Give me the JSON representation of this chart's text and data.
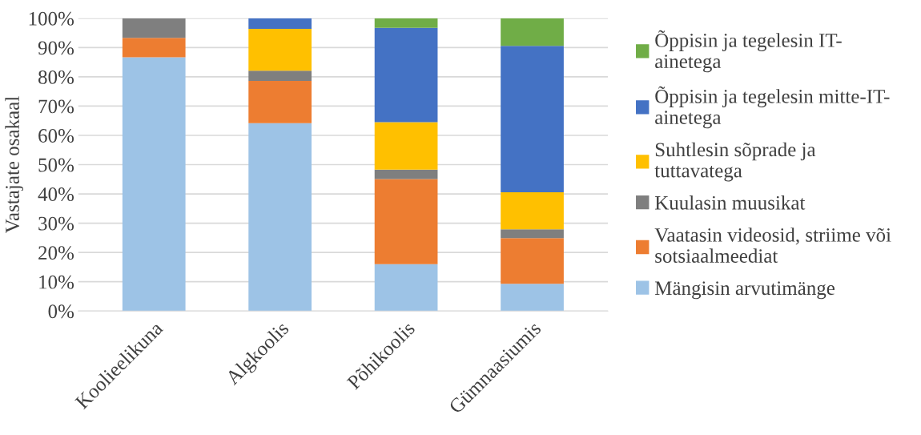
{
  "chart_data": {
    "type": "bar",
    "stacked": true,
    "ylabel": "Vastajate osakaal",
    "categories": [
      "Koolieelikuna",
      "Algkoolis",
      "Põhikoolis",
      "Gümnaasiumis"
    ],
    "series": [
      {
        "name": "Mängisin arvutimänge",
        "color": "#9dc3e6",
        "values": [
          86.7,
          64.2,
          16.0,
          9.3
        ]
      },
      {
        "name": "Vaatasin videosid, striime või\nsotsiaalmeediat",
        "color": "#ed7d31",
        "values": [
          6.6,
          14.4,
          29.1,
          15.6
        ]
      },
      {
        "name": "Kuulasin muusikat",
        "color": "#7f7f7f",
        "values": [
          6.7,
          3.5,
          3.2,
          3.0
        ]
      },
      {
        "name": "Suhtlesin sõprade ja\ntuttavatega",
        "color": "#ffc000",
        "values": [
          0,
          14.3,
          16.2,
          12.7
        ]
      },
      {
        "name": "Õppisin ja tegelesin mitte-IT-\nainetega",
        "color": "#4472c4",
        "values": [
          0,
          3.6,
          32.2,
          50.0
        ]
      },
      {
        "name": "Õppisin ja tegelesin IT-\nainetega",
        "color": "#70ad47",
        "values": [
          0,
          0,
          3.3,
          9.4
        ]
      }
    ],
    "ylim": [
      0,
      100
    ],
    "yticks": [
      {
        "value": 0,
        "label": "0%"
      },
      {
        "value": 10,
        "label": "10%"
      },
      {
        "value": 20,
        "label": "20%"
      },
      {
        "value": 30,
        "label": "30%"
      },
      {
        "value": 40,
        "label": "40%"
      },
      {
        "value": 50,
        "label": "50%"
      },
      {
        "value": 60,
        "label": "60%"
      },
      {
        "value": 70,
        "label": "70%"
      },
      {
        "value": 80,
        "label": "80%"
      },
      {
        "value": 90,
        "label": "90%"
      },
      {
        "value": 100,
        "label": "100%"
      }
    ],
    "grid": "y",
    "legend": "right"
  }
}
